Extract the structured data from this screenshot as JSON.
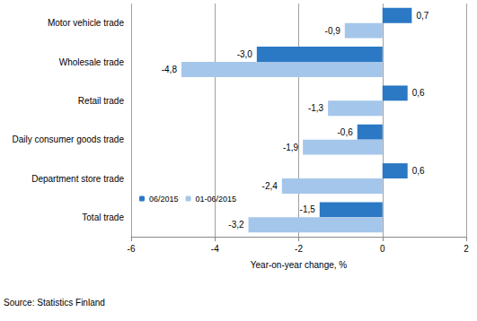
{
  "chart_data": {
    "type": "bar",
    "orientation": "horizontal",
    "categories": [
      "Motor vehicle trade",
      "Wholesale trade",
      "Retail trade",
      "Daily consumer goods trade",
      "Department store trade",
      "Total trade"
    ],
    "series": [
      {
        "name": "06/2015",
        "color": "#2b78c4",
        "values": [
          0.7,
          -3.0,
          0.6,
          -0.6,
          0.6,
          -1.5
        ],
        "value_labels": [
          "0,7",
          "-3,0",
          "0,6",
          "-0,6",
          "0,6",
          "-1,5"
        ]
      },
      {
        "name": "01-06/2015",
        "color": "#a4c6ea",
        "values": [
          -0.9,
          -4.8,
          -1.3,
          -1.9,
          -2.4,
          -3.2
        ],
        "value_labels": [
          "-0,9",
          "-4,8",
          "-1,3",
          "-1,9",
          "-2,4",
          "-3,2"
        ]
      }
    ],
    "x_label": "Year-on-year change, %",
    "xlim": [
      -6,
      2
    ],
    "xticks": [
      -6,
      -4,
      -2,
      0,
      2
    ],
    "grid": true,
    "data_labels": true,
    "legend": "bottom-left",
    "annotations": [
      "Source: Statistics Finland"
    ]
  }
}
